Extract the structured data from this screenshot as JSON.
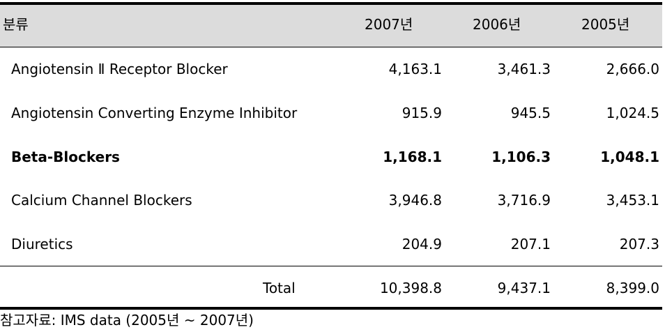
{
  "table": {
    "header": {
      "category": "분류",
      "years": [
        "2007년",
        "2006년",
        "2005년"
      ]
    },
    "rows": [
      {
        "label": "Angiotensin Ⅱ Receptor Blocker",
        "values": [
          "4,163.1",
          "3,461.3",
          "2,666.0"
        ]
      },
      {
        "label": "Angiotensin Converting Enzyme Inhibitor",
        "values": [
          "915.9",
          "945.5",
          "1,024.5"
        ]
      },
      {
        "label": "Beta-Blockers",
        "values": [
          "1,168.1",
          "1,106.3",
          "1,048.1"
        ]
      },
      {
        "label": "Calcium Channel Blockers",
        "values": [
          "3,946.8",
          "3,716.9",
          "3,453.1"
        ]
      },
      {
        "label": "Diuretics",
        "values": [
          "204.9",
          "207.1",
          "207.3"
        ]
      }
    ],
    "total": {
      "label": "Total",
      "values": [
        "10,398.8",
        "9,437.1",
        "8,399.0"
      ]
    }
  },
  "source": "참고자료: IMS data (2005년 ~ 2007년)"
}
